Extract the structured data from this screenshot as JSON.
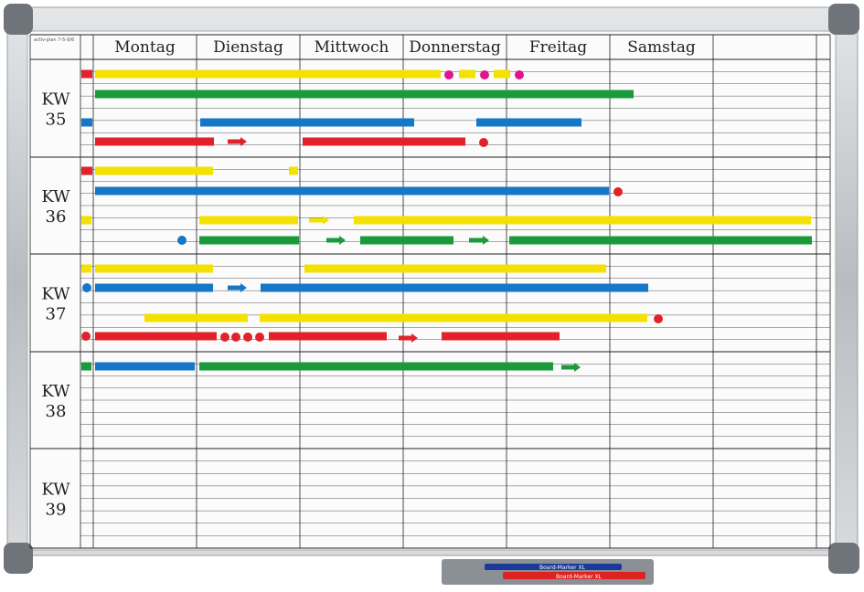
{
  "board": {
    "label": "activ-plan 7-5-9/6",
    "days": [
      "Montag",
      "Dienstag",
      "Mittwoch",
      "Donnerstag",
      "Freitag",
      "Samstag"
    ],
    "weeks": [
      {
        "prefix": "KW",
        "number": "35"
      },
      {
        "prefix": "KW",
        "number": "36"
      },
      {
        "prefix": "KW",
        "number": "37"
      },
      {
        "prefix": "KW",
        "number": "38"
      },
      {
        "prefix": "KW",
        "number": "39"
      }
    ]
  },
  "markers": [
    "Board-Marker XL",
    "Board-Marker XL"
  ]
}
